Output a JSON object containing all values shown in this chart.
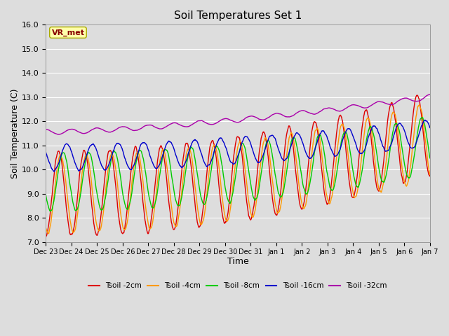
{
  "title": "Soil Temperatures Set 1",
  "xlabel": "Time",
  "ylabel": "Soil Temperature (C)",
  "ylim": [
    7.0,
    16.0
  ],
  "yticks": [
    7.0,
    8.0,
    9.0,
    10.0,
    11.0,
    12.0,
    13.0,
    14.0,
    15.0,
    16.0
  ],
  "background_color": "#dddddd",
  "plot_bg_color": "#dddddd",
  "grid_color": "#ffffff",
  "annotation_text": "VR_met",
  "annotation_box_color": "#ffffaa",
  "annotation_text_color": "#880000",
  "series": [
    {
      "label": "Tsoil -2cm",
      "color": "#dd0000",
      "lw": 1.0
    },
    {
      "label": "Tsoil -4cm",
      "color": "#ff9900",
      "lw": 1.0
    },
    {
      "label": "Tsoil -8cm",
      "color": "#00cc00",
      "lw": 1.0
    },
    {
      "label": "Tsoil -16cm",
      "color": "#0000cc",
      "lw": 1.0
    },
    {
      "label": "Tsoil -32cm",
      "color": "#aa00aa",
      "lw": 1.0
    }
  ],
  "tick_labels": [
    "Dec 23",
    "Dec 24",
    "Dec 25",
    "Dec 26",
    "Dec 27",
    "Dec 28",
    "Dec 29",
    "Dec 30",
    "Dec 31",
    "Jan 1",
    "Jan 2",
    "Jan 3",
    "Jan 4",
    "Jan 5",
    "Jan 6",
    "Jan 7"
  ]
}
